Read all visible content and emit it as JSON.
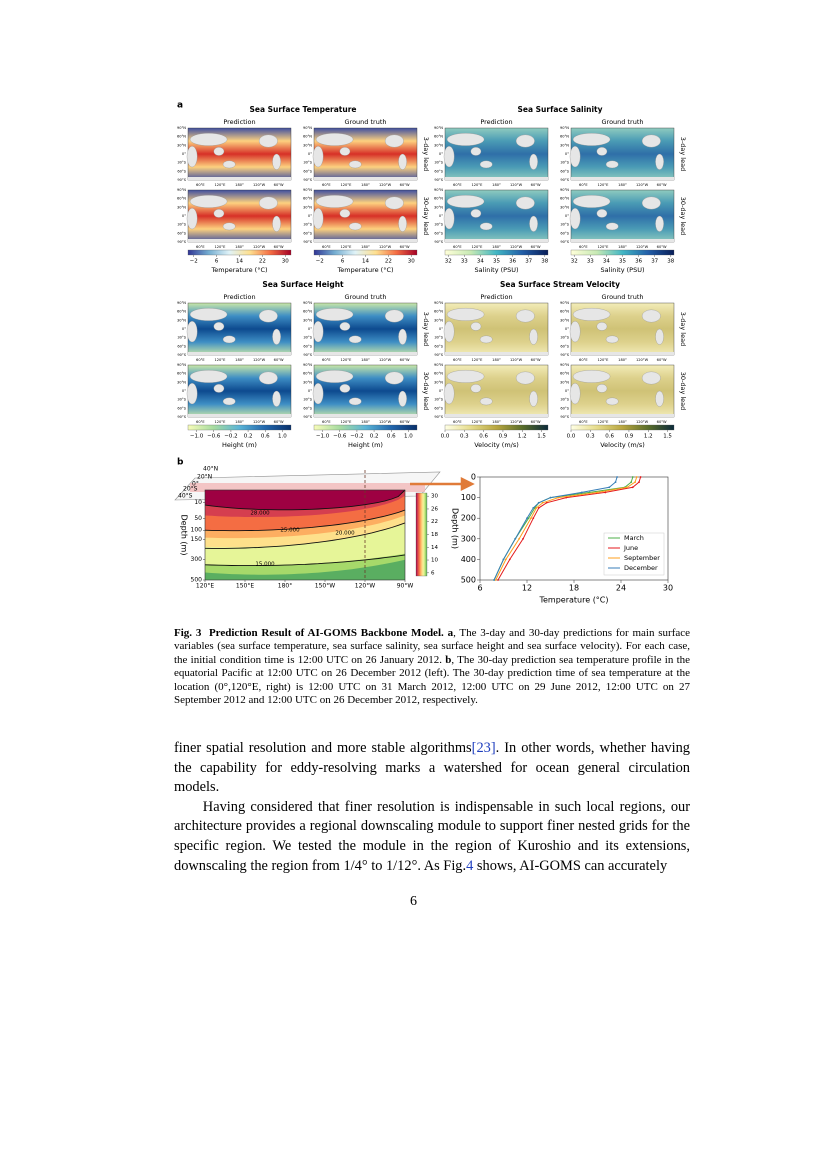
{
  "figure": {
    "panel_a": {
      "label": "a",
      "column_titles": [
        "Prediction",
        "Ground truth"
      ],
      "row_labels": [
        "3-day lead",
        "30-day lead"
      ],
      "lat_labels": [
        "90°N",
        "60°N",
        "30°N",
        "0°",
        "30°S",
        "60°S",
        "90°S"
      ],
      "lon_labels": [
        "60°E",
        "120°E",
        "180°",
        "120°W",
        "60°W"
      ],
      "variables": [
        {
          "title": "Sea Surface Temperature",
          "colorbar_label": "Temperature (°C)",
          "colorbar_lim": [
            -4,
            32
          ],
          "colorbar_ticks": [
            {
              "value": -2,
              "label": "−2"
            },
            6,
            14,
            22,
            30
          ],
          "colors": [
            "#313695",
            "#74add1",
            "#e0f3f8",
            "#fee090",
            "#f46d43",
            "#a50026"
          ]
        },
        {
          "title": "Sea Surface Salinity",
          "colorbar_label": "Salinity (PSU)",
          "colorbar_lim": [
            31.8,
            38.2
          ],
          "colorbar_ticks": [
            32,
            33,
            34,
            35,
            36,
            37,
            38
          ],
          "colors": [
            "#ffffd9",
            "#c7e9b4",
            "#41b6c4",
            "#225ea8",
            "#081d58"
          ]
        },
        {
          "title": "Sea Surface Height",
          "colorbar_label": "Height (m)",
          "colorbar_lim": [
            -1.2,
            1.2
          ],
          "colorbar_ticks": [
            {
              "value": -1.0,
              "label": "−1.0"
            },
            {
              "value": -0.6,
              "label": "−0.6"
            },
            {
              "value": -0.2,
              "label": "−0.2"
            },
            0.2,
            0.6,
            {
              "value": 1.0,
              "label": "1.0"
            }
          ],
          "colors": [
            "#f7fcb9",
            "#a6dba0",
            "#5ab4d6",
            "#2166ac",
            "#08306b"
          ]
        },
        {
          "title": "Sea Surface Stream Velocity",
          "colorbar_label": "Velocity (m/s)",
          "colorbar_lim": [
            0,
            1.6
          ],
          "colorbar_ticks": [
            {
              "value": 0,
              "label": "0.0"
            },
            0.3,
            0.6,
            0.9,
            1.2,
            1.5
          ],
          "colors": [
            "#ffffe5",
            "#e6dc8c",
            "#b8a640",
            "#5a6e2a",
            "#0b2a3a"
          ]
        }
      ]
    },
    "panel_b": {
      "label": "b",
      "globe_labels": [
        "40°N",
        "20°N",
        "0°",
        "20°S",
        "40°S"
      ],
      "section": {
        "type": "contour",
        "ylabel": "Depth (m)",
        "xticks": [
          "120°E",
          "150°E",
          "180°",
          "150°W",
          "120°W",
          "90°W"
        ],
        "ylim": [
          0,
          500
        ],
        "yticks": [
          10,
          50,
          100,
          150,
          300,
          500
        ],
        "colorbar_lim": [
          5,
          31
        ],
        "colorbar_ticks": [
          6,
          10,
          14,
          18,
          22,
          26,
          30
        ],
        "colors": [
          "#5aae61",
          "#a6d96a",
          "#e6f598",
          "#fee08b",
          "#fdae61",
          "#f46d43",
          "#d53e4f",
          "#9e0142"
        ],
        "contour_labels": [
          "28.000",
          "25.000",
          "20.000",
          "15.000"
        ]
      },
      "profile": {
        "type": "line",
        "xlabel": "Temperature (°C)",
        "ylabel": "Depth (m)",
        "xlim": [
          6,
          30
        ],
        "xticks": [
          6,
          12,
          18,
          24,
          30
        ],
        "ylim": [
          0,
          500
        ],
        "yticks": [
          0,
          100,
          200,
          300,
          400,
          500
        ],
        "y": [
          0,
          25,
          50,
          75,
          100,
          125,
          150,
          200,
          300,
          400,
          500
        ],
        "series": [
          {
            "name": "March",
            "color": "#4daf4a",
            "values": [
              25.5,
              25.3,
              24.5,
              20,
              15,
              13.5,
              13,
              12.2,
              10.5,
              9,
              7.8
            ]
          },
          {
            "name": "June",
            "color": "#e41a1c",
            "values": [
              26.5,
              26.3,
              25.5,
              22,
              17,
              14.5,
              13.5,
              12.8,
              11.5,
              9.8,
              8.3
            ]
          },
          {
            "name": "September",
            "color": "#ff9f1c",
            "values": [
              26,
              25.8,
              24.8,
              21,
              16,
              14,
              13.2,
              12.5,
              11,
              9.3,
              8
            ]
          },
          {
            "name": "December",
            "color": "#377eb8",
            "values": [
              23.5,
              23.3,
              22.5,
              19,
              15,
              13.5,
              12.8,
              12,
              10.5,
              9,
              7.8
            ]
          }
        ]
      }
    }
  },
  "caption": {
    "label": "Fig. 3",
    "title": "Prediction Result of AI-GOMS Backbone Model.",
    "parts": [
      {
        "bold": "a",
        "text": ", The 3-day and 30-day predictions for main surface variables (sea surface temperature, sea surface salinity, sea surface height and sea surface velocity). For each case, the initial condition time is 12:00 UTC on 26 January 2012."
      },
      {
        "bold": "b",
        "text": ", The 30-day prediction sea temperature profile in the equatorial Pacific at 12:00 UTC on 26 December 2012 (left). The 30-day prediction time of sea temperature at the location (0°,120°E, right) is 12:00 UTC on 31 March 2012, 12:00 UTC on 29 June 2012, 12:00 UTC on 27 September 2012 and 12:00 UTC on 26 December 2012, respectively."
      }
    ]
  },
  "body": {
    "paragraphs": [
      [
        "finer spatial resolution and more stable algorithms",
        "[23]",
        ". In other words, whether having the capability for eddy-resolving marks a watershed for ocean general circulation models."
      ],
      [
        "Having considered that finer resolution is indispensable in such local regions, our architecture provides a regional downscaling module to support finer nested grids for the specific region. We tested the module in the region of Kuroshio and its extensions, downscaling the region from 1/4° to 1/12°. As Fig.",
        "4",
        " shows, AI-GOMS can accurately"
      ]
    ]
  },
  "page_number": "6"
}
